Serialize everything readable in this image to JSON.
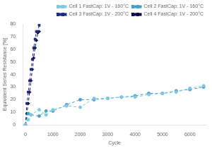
{
  "chart_data": {
    "type": "line",
    "xlabel": "Cycle",
    "ylabel": "Equivalent Series Resistance [%]",
    "xlim": [
      -100,
      6600
    ],
    "ylim": [
      0,
      80
    ],
    "xticks": [
      0,
      1000,
      2000,
      3000,
      4000,
      5000,
      6000
    ],
    "yticks": [
      0,
      10,
      20,
      30,
      40,
      50,
      60,
      70,
      80
    ],
    "grid": false,
    "legend": "upper right",
    "series": [
      {
        "name": "Cell 1 FastCap: 1V - 160°C",
        "color": "#7ec8e3",
        "marker": "circle",
        "line_style": "dashed",
        "x": [
          0,
          100,
          200,
          500,
          750,
          1000,
          1500,
          2000,
          2500,
          3000,
          3500,
          4000,
          4500,
          5000,
          5500,
          6000,
          6500
        ],
        "values": [
          0,
          4,
          8,
          12,
          8,
          12,
          15,
          14,
          21,
          21,
          22,
          22,
          24,
          25,
          26,
          29,
          31
        ]
      },
      {
        "name": "Cell 2 FastCap: 1V - 160°C",
        "color": "#4a9fc8",
        "marker": "circle",
        "line_style": "dashed",
        "x": [
          0,
          100,
          200,
          500,
          750,
          1000,
          1500,
          2000,
          2500,
          3000,
          3500,
          4000,
          4500,
          5000,
          5500,
          6000,
          6500
        ],
        "values": [
          0,
          9,
          8,
          7,
          11,
          11,
          16,
          20,
          20,
          21,
          22,
          23,
          25,
          25,
          27,
          28,
          30
        ]
      },
      {
        "name": "Cell 3 FastCap: 1V - 200°C",
        "color": "#1e2a7a",
        "marker": "square",
        "line_style": "dashed",
        "x": [
          0,
          50,
          100,
          150,
          200,
          250,
          300,
          350,
          400,
          450,
          500
        ],
        "values": [
          0,
          17,
          26,
          35,
          44,
          52,
          61,
          68,
          74,
          74,
          79
        ]
      },
      {
        "name": "Cell 4 FastCap: 1V - 200°C",
        "color": "#0a0a4a",
        "marker": "diamond",
        "line_style": "dashed",
        "x": [
          0,
          50,
          100,
          150,
          200,
          250,
          300,
          350,
          400,
          450,
          500
        ],
        "values": [
          0,
          9,
          17,
          26,
          35,
          44,
          53,
          61,
          67,
          73,
          74
        ]
      }
    ]
  }
}
